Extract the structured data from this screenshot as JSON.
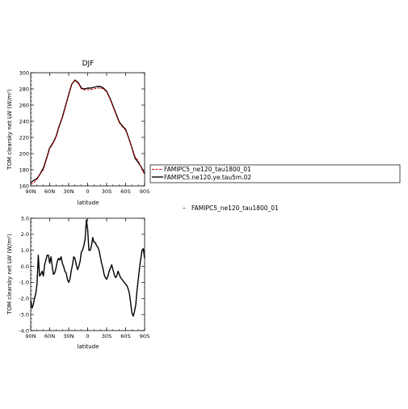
{
  "chart_data": [
    {
      "type": "line",
      "title": "DJF",
      "xlabel": "latitude",
      "ylabel": "TOM clearsky net LW (W/m²)",
      "xlim": [
        -90,
        90
      ],
      "ylim": [
        160,
        300
      ],
      "xticks": [
        -90,
        -60,
        -30,
        0,
        30,
        60,
        90
      ],
      "xtick_labels": [
        "90N",
        "60N",
        "30N",
        "0",
        "30S",
        "60S",
        "90S"
      ],
      "yticks": [
        160,
        180,
        200,
        220,
        240,
        260,
        280,
        300
      ],
      "ytick_labels": [
        "160",
        "180",
        "200",
        "220",
        "240",
        "260",
        "280",
        "300"
      ],
      "legend_placement": "right",
      "series": [
        {
          "name": "FAMIPC5_ne120_tau1800_01",
          "color": "#cc0000",
          "style": "dashed",
          "x": [
            -90,
            -85,
            -80,
            -75,
            -70,
            -65,
            -60,
            -55,
            -50,
            -45,
            -40,
            -35,
            -30,
            -25,
            -20,
            -15,
            -10,
            -5,
            0,
            5,
            10,
            15,
            20,
            25,
            30,
            35,
            40,
            45,
            50,
            55,
            60,
            65,
            70,
            75,
            80,
            85,
            90
          ],
          "values": [
            162,
            164,
            168,
            175,
            180,
            193,
            206,
            212,
            220,
            233,
            244,
            258,
            273,
            286,
            290,
            287,
            280,
            279,
            279,
            279,
            280,
            281,
            281,
            280,
            276,
            268,
            258,
            248,
            238,
            233,
            229,
            219,
            207,
            196,
            191,
            182,
            174
          ]
        },
        {
          "name": "FAMIPC5.ne120.ye.tau5m.02",
          "color": "#000000",
          "style": "solid",
          "x": [
            -90,
            -85,
            -80,
            -75,
            -70,
            -65,
            -60,
            -55,
            -50,
            -45,
            -40,
            -35,
            -30,
            -25,
            -20,
            -15,
            -10,
            -5,
            0,
            5,
            10,
            15,
            20,
            25,
            30,
            35,
            40,
            45,
            50,
            55,
            60,
            65,
            70,
            75,
            80,
            85,
            90
          ],
          "values": [
            164,
            167,
            169,
            175,
            182,
            194,
            207,
            213,
            221,
            234,
            245,
            259,
            273,
            286,
            291,
            288,
            281,
            280,
            281,
            281,
            282,
            283,
            283,
            281,
            277,
            269,
            259,
            249,
            239,
            234,
            230,
            219,
            207,
            194,
            189,
            183,
            175
          ]
        }
      ]
    },
    {
      "type": "line",
      "title": "",
      "xlabel": "latitude",
      "ylabel": "TOM clearsky net LW (W/m²)",
      "xlim": [
        -90,
        90
      ],
      "ylim": [
        -4.0,
        3.0
      ],
      "xticks": [
        -90,
        -60,
        -30,
        0,
        30,
        60,
        90
      ],
      "xtick_labels": [
        "90N",
        "60N",
        "30N",
        "0",
        "30S",
        "60S",
        "90S"
      ],
      "yticks": [
        -4.0,
        -3.0,
        -2.0,
        -1.0,
        0.0,
        1.0,
        2.0,
        3.0
      ],
      "ytick_labels": [
        "-4.0",
        "-3.0",
        "-2.0",
        "-1.0",
        "0.0",
        "1.0",
        "2.0",
        "3.0"
      ],
      "legend_placement": "right",
      "series": [
        {
          "name": "FAMIPC5_ne120_tau1800_01",
          "color": "#000000",
          "style": "solid",
          "x": [
            -90,
            -88,
            -86,
            -84,
            -82,
            -80,
            -78,
            -76,
            -74,
            -72,
            -70,
            -68,
            -66,
            -64,
            -62,
            -60,
            -58,
            -56,
            -54,
            -52,
            -50,
            -48,
            -46,
            -44,
            -42,
            -40,
            -38,
            -36,
            -34,
            -32,
            -30,
            -28,
            -26,
            -24,
            -22,
            -20,
            -18,
            -16,
            -14,
            -12,
            -10,
            -8,
            -6,
            -4,
            -2,
            0,
            2,
            4,
            6,
            8,
            10,
            12,
            14,
            16,
            18,
            20,
            22,
            24,
            26,
            28,
            30,
            32,
            34,
            36,
            38,
            40,
            42,
            44,
            46,
            48,
            50,
            52,
            54,
            56,
            58,
            60,
            62,
            64,
            66,
            68,
            70,
            72,
            74,
            76,
            78,
            80,
            82,
            84,
            86,
            88,
            90
          ],
          "values": [
            -2.1,
            -2.6,
            -2.4,
            -2.0,
            -1.7,
            -1.1,
            0.7,
            -0.6,
            -0.5,
            -0.3,
            -0.6,
            0.1,
            0.4,
            0.7,
            0.7,
            0.2,
            0.6,
            0.0,
            -0.5,
            -0.4,
            -0.1,
            0.3,
            0.5,
            0.4,
            0.6,
            0.2,
            0.0,
            -0.3,
            -0.4,
            -0.8,
            -1.0,
            -0.8,
            -0.3,
            0.1,
            0.6,
            0.5,
            0.1,
            -0.2,
            0.0,
            0.3,
            0.9,
            1.0,
            1.3,
            1.7,
            2.9,
            2.3,
            1.0,
            1.0,
            1.3,
            1.8,
            1.5,
            1.5,
            1.3,
            1.2,
            1.0,
            0.6,
            0.2,
            -0.1,
            -0.5,
            -0.7,
            -0.8,
            -0.6,
            -0.3,
            -0.1,
            0.1,
            -0.2,
            -0.5,
            -0.7,
            -0.6,
            -0.3,
            -0.5,
            -0.7,
            -0.8,
            -0.9,
            -1.0,
            -1.1,
            -1.2,
            -1.4,
            -1.7,
            -2.3,
            -2.9,
            -3.1,
            -2.8,
            -2.4,
            -1.5,
            -0.8,
            -0.1,
            0.5,
            1.0,
            1.1,
            0.5
          ]
        }
      ]
    }
  ],
  "legend_box": {
    "entries": [
      {
        "label": "FAMIPC5_ne120_tau1800_01",
        "color": "#cc0000"
      },
      {
        "label": "FAMIPC5.ne120.ye.tau5m.02",
        "color": "#000000"
      }
    ]
  },
  "legend_lower": {
    "symbol": "–",
    "label": "FAMIPC5_ne120_tau1800_01"
  }
}
